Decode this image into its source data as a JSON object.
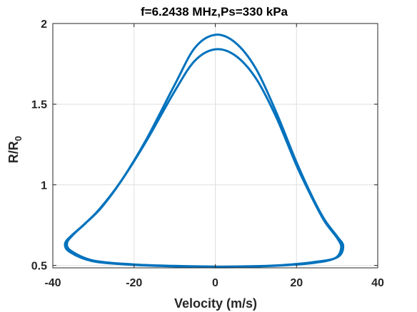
{
  "chart_data": {
    "type": "line",
    "title": "f=6.2438 MHz,Ps=330 kPa",
    "xlabel": "Velocity (m/s)",
    "ylabel_main": "R/R",
    "ylabel_sub": "0",
    "xlim": [
      -40,
      40
    ],
    "ylim": [
      0.485,
      2.0
    ],
    "xticks": [
      -40,
      -20,
      0,
      20,
      40
    ],
    "xtick_labels": [
      "-40",
      "-20",
      "0",
      "20",
      "40"
    ],
    "yticks": [
      0.5,
      1.0,
      1.5,
      2.0
    ],
    "ytick_labels": [
      "0.5",
      "1",
      "1.5",
      "2"
    ],
    "grid": true,
    "line_color": "#0072BD",
    "series": [
      {
        "points": [
          [
            0,
            1.93
          ],
          [
            5,
            1.88
          ],
          [
            10,
            1.72
          ],
          [
            15,
            1.45
          ],
          [
            20,
            1.14
          ],
          [
            24,
            0.92
          ],
          [
            27,
            0.78
          ],
          [
            30,
            0.68
          ],
          [
            31.5,
            0.62
          ],
          [
            30,
            0.55
          ],
          [
            24,
            0.52
          ],
          [
            15,
            0.5
          ],
          [
            5,
            0.493
          ],
          [
            0,
            0.492
          ],
          [
            -10,
            0.497
          ],
          [
            -20,
            0.506
          ],
          [
            -30,
            0.53
          ],
          [
            -35.5,
            0.59
          ],
          [
            -36.5,
            0.64
          ],
          [
            -35,
            0.69
          ],
          [
            -32,
            0.76
          ],
          [
            -28,
            0.86
          ],
          [
            -23,
            1.03
          ],
          [
            -17,
            1.28
          ],
          [
            -10,
            1.62
          ],
          [
            -5,
            1.85
          ],
          [
            0,
            1.93
          ]
        ]
      },
      {
        "points": [
          [
            0,
            1.84
          ],
          [
            5,
            1.8
          ],
          [
            10,
            1.66
          ],
          [
            15,
            1.42
          ],
          [
            20,
            1.12
          ],
          [
            24,
            0.91
          ],
          [
            27,
            0.77
          ],
          [
            30,
            0.67
          ],
          [
            31,
            0.61
          ],
          [
            29.5,
            0.545
          ],
          [
            24,
            0.515
          ],
          [
            15,
            0.498
          ],
          [
            5,
            0.49
          ],
          [
            0,
            0.489
          ],
          [
            -10,
            0.494
          ],
          [
            -20,
            0.503
          ],
          [
            -30,
            0.525
          ],
          [
            -35.8,
            0.583
          ],
          [
            -37,
            0.634
          ],
          [
            -35.5,
            0.683
          ],
          [
            -32.5,
            0.75
          ],
          [
            -28.5,
            0.85
          ],
          [
            -23,
            1.03
          ],
          [
            -17,
            1.27
          ],
          [
            -10,
            1.58
          ],
          [
            -5,
            1.77
          ],
          [
            0,
            1.84
          ]
        ]
      }
    ]
  }
}
